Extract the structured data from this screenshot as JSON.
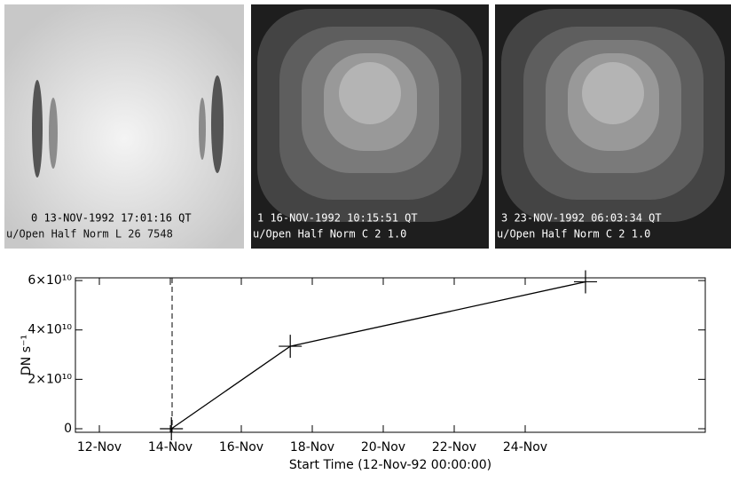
{
  "images": [
    {
      "line1": "0 13-NOV-1992 17:01:16  QT",
      "line2": "u/Open  Half Norm L  26  7548"
    },
    {
      "line1": "1 16-NOV-1992 10:15:51   QT",
      "line2": "u/Open  Half Norm C  2    1.0"
    },
    {
      "line1": "3 23-NOV-1992 06:03:34   QT",
      "line2": "u/Open  Half Norm C  2    1.0"
    }
  ],
  "chart_data": {
    "type": "line",
    "x_label": "Start Time (12-Nov-92 00:00:00)",
    "y_label": "DN s⁻¹",
    "x": [
      2.03,
      5.38,
      13.7
    ],
    "series": [
      {
        "color": "#000000",
        "values": [
          0,
          33400000000,
          59500000000
        ]
      }
    ],
    "xlim": [
      -0.675,
      17.075
    ],
    "xticks": [
      {
        "value": 0,
        "label": "12-Nov"
      },
      {
        "value": 2,
        "label": "14-Nov"
      },
      {
        "value": 4,
        "label": "16-Nov"
      },
      {
        "value": 6,
        "label": "18-Nov"
      },
      {
        "value": 8,
        "label": "20-Nov"
      },
      {
        "value": 10,
        "label": "22-Nov"
      },
      {
        "value": 12,
        "label": "24-Nov"
      }
    ],
    "ylim": [
      -1440000000,
      61100000000
    ],
    "yticks": [
      0,
      {
        "value": 20000000000,
        "label": "2×10¹⁰"
      },
      {
        "value": 40000000000,
        "label": "4×10¹⁰"
      },
      {
        "value": 60000000000,
        "label": "6×10¹⁰"
      }
    ],
    "vline": 2.05
  }
}
